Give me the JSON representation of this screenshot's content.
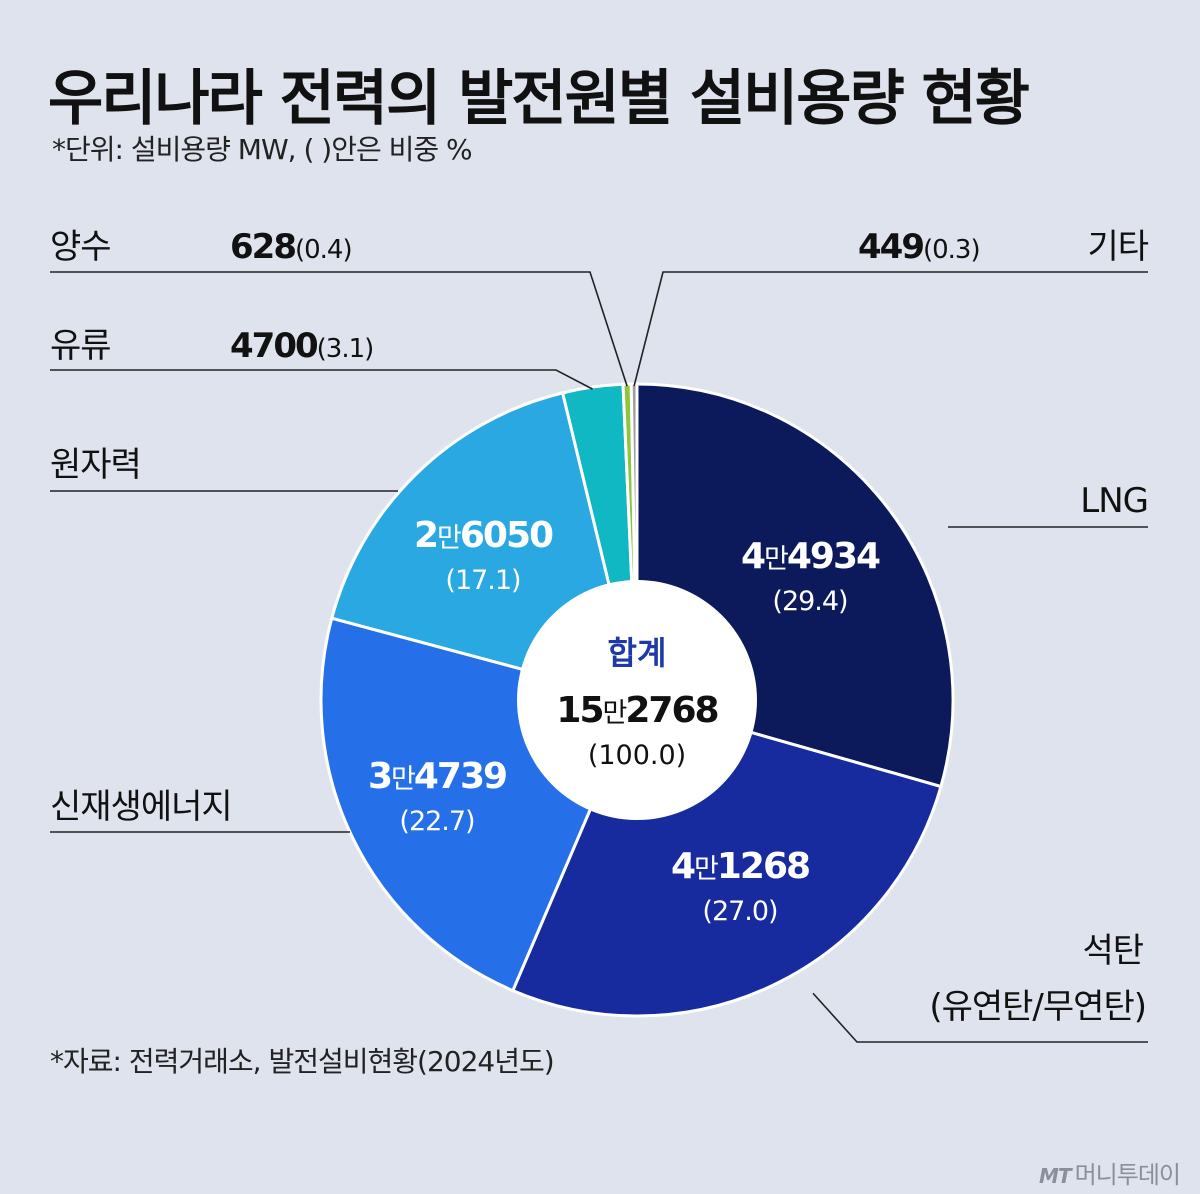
{
  "title": "우리나라 전력의 발전원별 설비용량 현황",
  "subtitle": "*단위: 설비용량 MW, (   )안은 비중 %",
  "source": "*자료: 전력거래소, 발전설비현황(2024년도)",
  "brand": {
    "mark": "MT",
    "name": "머니투데이"
  },
  "colors": {
    "background": "#dfe3ee",
    "center_title": "#1f3aa8",
    "leader_line": "#222222"
  },
  "chart_data": {
    "type": "pie",
    "variant": "donut",
    "unit": "MW",
    "total": {
      "label": "합계",
      "value": 152768,
      "display_prefix": "15",
      "display_man": "만",
      "display_suffix": "2768",
      "share": "(100.0)"
    },
    "slices": [
      {
        "name": "LNG",
        "value": 44934,
        "share": 29.4,
        "label_prefix": "4",
        "label_man": "만",
        "label_suffix": "4934",
        "share_text": "(29.4)",
        "color": "#0c1a5c"
      },
      {
        "name": "석탄 (유연탄/무연탄)",
        "name_line1": "석탄",
        "name_line2": "(유연탄/무연탄)",
        "value": 41268,
        "share": 27.0,
        "label_prefix": "4",
        "label_man": "만",
        "label_suffix": "1268",
        "share_text": "(27.0)",
        "color": "#182b9e"
      },
      {
        "name": "신재생에너지",
        "value": 34739,
        "share": 22.7,
        "label_prefix": "3",
        "label_man": "만",
        "label_suffix": "4739",
        "share_text": "(22.7)",
        "color": "#2570e8"
      },
      {
        "name": "원자력",
        "value": 26050,
        "share": 17.1,
        "label_prefix": "2",
        "label_man": "만",
        "label_suffix": "6050",
        "share_text": "(17.1)",
        "color": "#2aa8e2"
      },
      {
        "name": "유류",
        "value": 4700,
        "share": 3.1,
        "label_bold": "4700",
        "share_text": "(3.1)",
        "color": "#0fb8c2"
      },
      {
        "name": "양수",
        "value": 628,
        "share": 0.4,
        "label_bold": "628",
        "share_text": "(0.4)",
        "color": "#8cc63f"
      },
      {
        "name": "기타",
        "value": 449,
        "share": 0.3,
        "label_bold": "449",
        "share_text": "(0.3)",
        "color": "#9e9e9e"
      }
    ],
    "start_angle_deg": 0,
    "direction": "clockwise",
    "legend": "none"
  }
}
